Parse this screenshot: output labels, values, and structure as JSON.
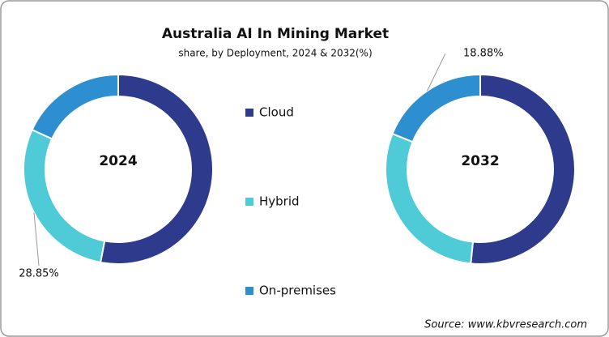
{
  "title": "Australia AI In Mining Market",
  "subtitle": "share, by Deployment, 2024 & 2032(%)",
  "source": "Source: www.kbvresearch.com",
  "chart_data": [
    {
      "type": "pie",
      "title": "2024",
      "categories": [
        "Cloud",
        "Hybrid",
        "On-premises"
      ],
      "values": [
        53.0,
        28.85,
        18.15
      ],
      "value_labels": [
        null,
        "28.85%",
        null
      ],
      "colors": [
        "#2e3a8c",
        "#4ecbd6",
        "#2d8fcf"
      ]
    },
    {
      "type": "pie",
      "title": "2032",
      "categories": [
        "Cloud",
        "Hybrid",
        "On-premises"
      ],
      "values": [
        51.6,
        29.52,
        18.88
      ],
      "value_labels": [
        null,
        null,
        "18.88%"
      ],
      "colors": [
        "#2e3a8c",
        "#4ecbd6",
        "#2d8fcf"
      ]
    }
  ]
}
